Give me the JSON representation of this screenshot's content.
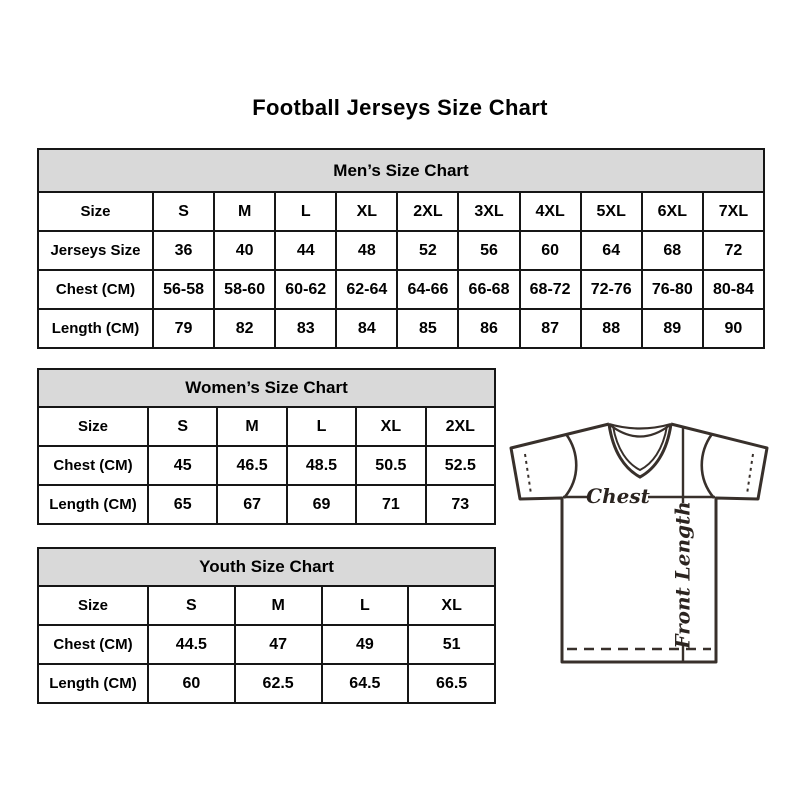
{
  "title": "Football Jerseys Size Chart",
  "tables": {
    "mens": {
      "title": "Men’s Size Chart",
      "rows": [
        [
          "Size",
          "S",
          "M",
          "L",
          "XL",
          "2XL",
          "3XL",
          "4XL",
          "5XL",
          "6XL",
          "7XL"
        ],
        [
          "Jerseys Size",
          "36",
          "40",
          "44",
          "48",
          "52",
          "56",
          "60",
          "64",
          "68",
          "72"
        ],
        [
          "Chest (CM)",
          "56-58",
          "58-60",
          "60-62",
          "62-64",
          "64-66",
          "66-68",
          "68-72",
          "72-76",
          "76-80",
          "80-84"
        ],
        [
          "Length (CM)",
          "79",
          "82",
          "83",
          "84",
          "85",
          "86",
          "87",
          "88",
          "89",
          "90"
        ]
      ]
    },
    "womens": {
      "title": "Women’s Size Chart",
      "rows": [
        [
          "Size",
          "S",
          "M",
          "L",
          "XL",
          "2XL"
        ],
        [
          "Chest (CM)",
          "45",
          "46.5",
          "48.5",
          "50.5",
          "52.5"
        ],
        [
          "Length (CM)",
          "65",
          "67",
          "69",
          "71",
          "73"
        ]
      ]
    },
    "youth": {
      "title": "Youth Size Chart",
      "rows": [
        [
          "Size",
          "S",
          "M",
          "L",
          "XL"
        ],
        [
          "Chest (CM)",
          "44.5",
          "47",
          "49",
          "51"
        ],
        [
          "Length (CM)",
          "60",
          "62.5",
          "64.5",
          "66.5"
        ]
      ]
    }
  },
  "diagram": {
    "chest_label": "Chest",
    "front_length_label": "Front Length"
  },
  "colors": {
    "header_bg": "#d9d9d9",
    "table_border": "#161616",
    "jersey_line": "#38302b"
  }
}
